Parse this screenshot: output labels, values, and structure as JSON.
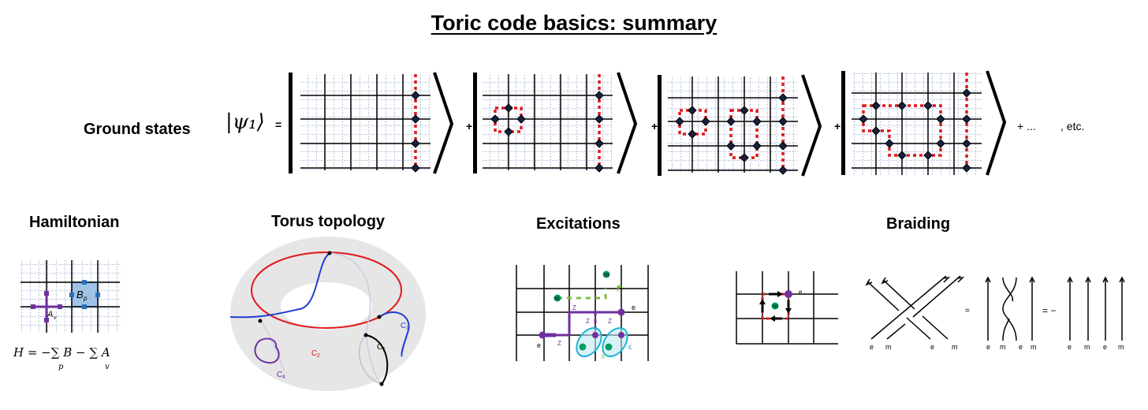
{
  "title": "Toric code basics: summary",
  "ground_states": {
    "heading": "Ground states",
    "ket_label": "|ψ₁⟩",
    "equals": "=",
    "plus": "+",
    "tail_dots": "+ ...",
    "etc": ", etc."
  },
  "hamiltonian": {
    "heading": "Hamiltonian",
    "plaquette_label": "B",
    "plaquette_sub": "p",
    "vertex_label": "A",
    "vertex_sub": "v",
    "formula": "H = −∑ B  − ∑ A",
    "formula_sub_p": "p",
    "formula_sub_v": "v",
    "formula_bp_sub": "p",
    "formula_av_sub": "v"
  },
  "torus": {
    "heading": "Torus topology",
    "c1": "C",
    "c1_sub": "1",
    "c2": "C",
    "c2_sub": "2",
    "c3": "C",
    "c3_sub": "3",
    "c4": "C",
    "c4_sub": "4"
  },
  "excitations": {
    "heading": "Excitations",
    "m_top": "m",
    "m_left": "m",
    "e_right": "e",
    "e_left": "e",
    "x_top": "X",
    "x_bottom": "X",
    "z_1": "Z",
    "z_2": "Z",
    "z_3": "Z",
    "z_4": "Z",
    "epsilon": "ε"
  },
  "braiding": {
    "heading": "Braiding",
    "loop_m": "m",
    "loop_e": "e",
    "labels_knot": [
      "e",
      "m",
      "e",
      "m"
    ],
    "eq1": "=",
    "labels_twist": [
      "e",
      "m",
      "e",
      "m"
    ],
    "eq2": "= −",
    "labels_straight": [
      "e",
      "m",
      "e",
      "m"
    ]
  },
  "colors": {
    "string": "#e0191b",
    "diamond": "#16213e",
    "grid_dots": "#a9b8d8",
    "purple": "#7030a0",
    "green": "#00a060",
    "cyan": "#19b4d4",
    "lime": "#7bc043",
    "blue": "#1f3fd0"
  }
}
